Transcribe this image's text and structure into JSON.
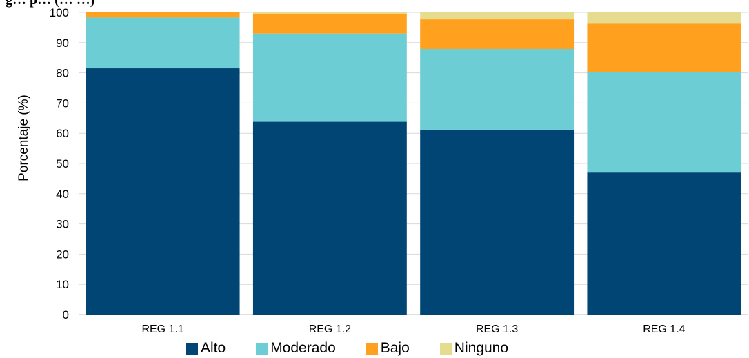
{
  "header_fragment": "g…   p…  (…  …)",
  "chart_data": {
    "type": "bar",
    "stacked": true,
    "categories": [
      "REG 1.1",
      "REG 1.2",
      "REG 1.3",
      "REG 1.4"
    ],
    "ylabel": "Porcentaje (%)",
    "xlabel": "",
    "ylim": [
      0,
      100
    ],
    "yticks": [
      0,
      10,
      20,
      30,
      40,
      50,
      60,
      70,
      80,
      90,
      100
    ],
    "grid": true,
    "legend_position": "bottom",
    "series": [
      {
        "name": "Alto",
        "color": "#004573",
        "values": [
          81.5,
          63.8,
          61.2,
          47.0
        ]
      },
      {
        "name": "Moderado",
        "color": "#6CCDD5",
        "values": [
          16.8,
          29.2,
          26.7,
          33.3
        ]
      },
      {
        "name": "Bajo",
        "color": "#FFA11F",
        "values": [
          1.7,
          6.5,
          9.8,
          16.0
        ]
      },
      {
        "name": "Ninguno",
        "color": "#E6DC8F",
        "values": [
          0.0,
          0.5,
          2.3,
          3.7
        ]
      }
    ]
  }
}
